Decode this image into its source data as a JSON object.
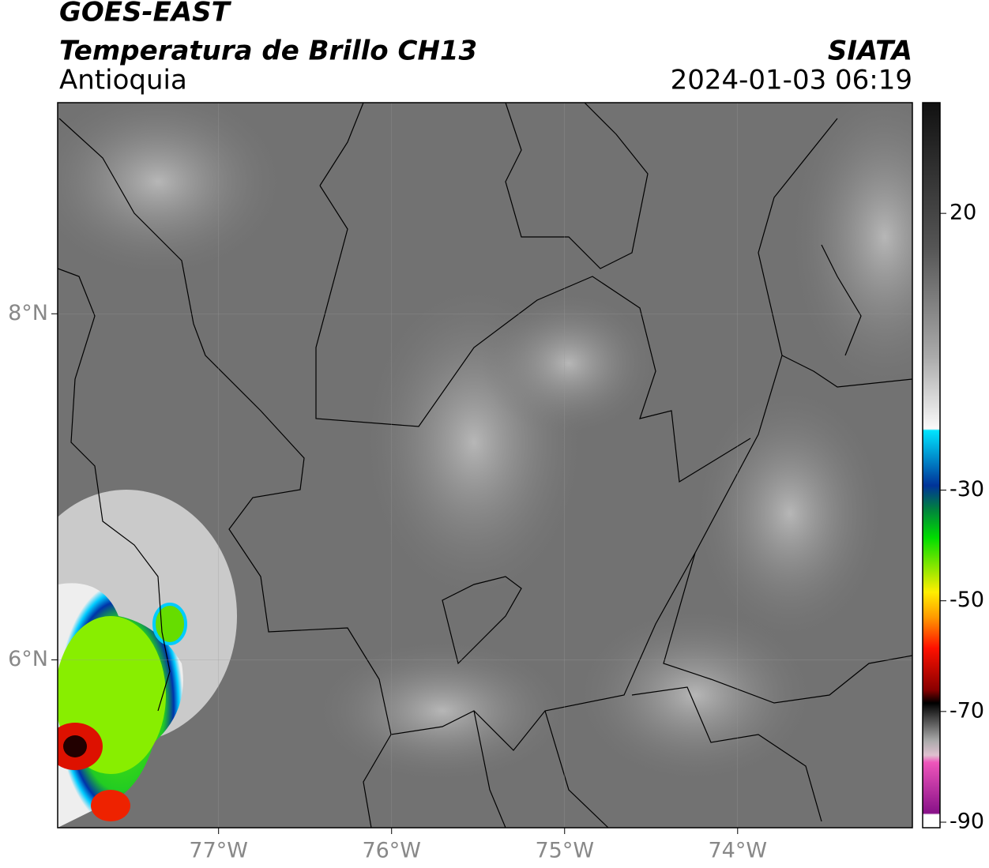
{
  "header": {
    "title": "GOES-EAST",
    "subtitle": "Temperatura de Brillo CH13",
    "region": "Antioquia",
    "source": "SIATA",
    "timestamp": "2024-01-03 06:19"
  },
  "map": {
    "xlim": [
      -77.93,
      -72.99
    ],
    "ylim": [
      5.03,
      9.22
    ],
    "xticks": [
      {
        "value": -77,
        "label": "77°W"
      },
      {
        "value": -76,
        "label": "76°W"
      },
      {
        "value": -75,
        "label": "75°W"
      },
      {
        "value": -74,
        "label": "74°W"
      }
    ],
    "yticks": [
      {
        "value": 8,
        "label": "8°N"
      },
      {
        "value": 6,
        "label": "6°N"
      }
    ],
    "grid": true
  },
  "colorbar": {
    "lim": [
      -91,
      40
    ],
    "ticks": [
      20,
      -30,
      -50,
      -70,
      -90
    ]
  }
}
